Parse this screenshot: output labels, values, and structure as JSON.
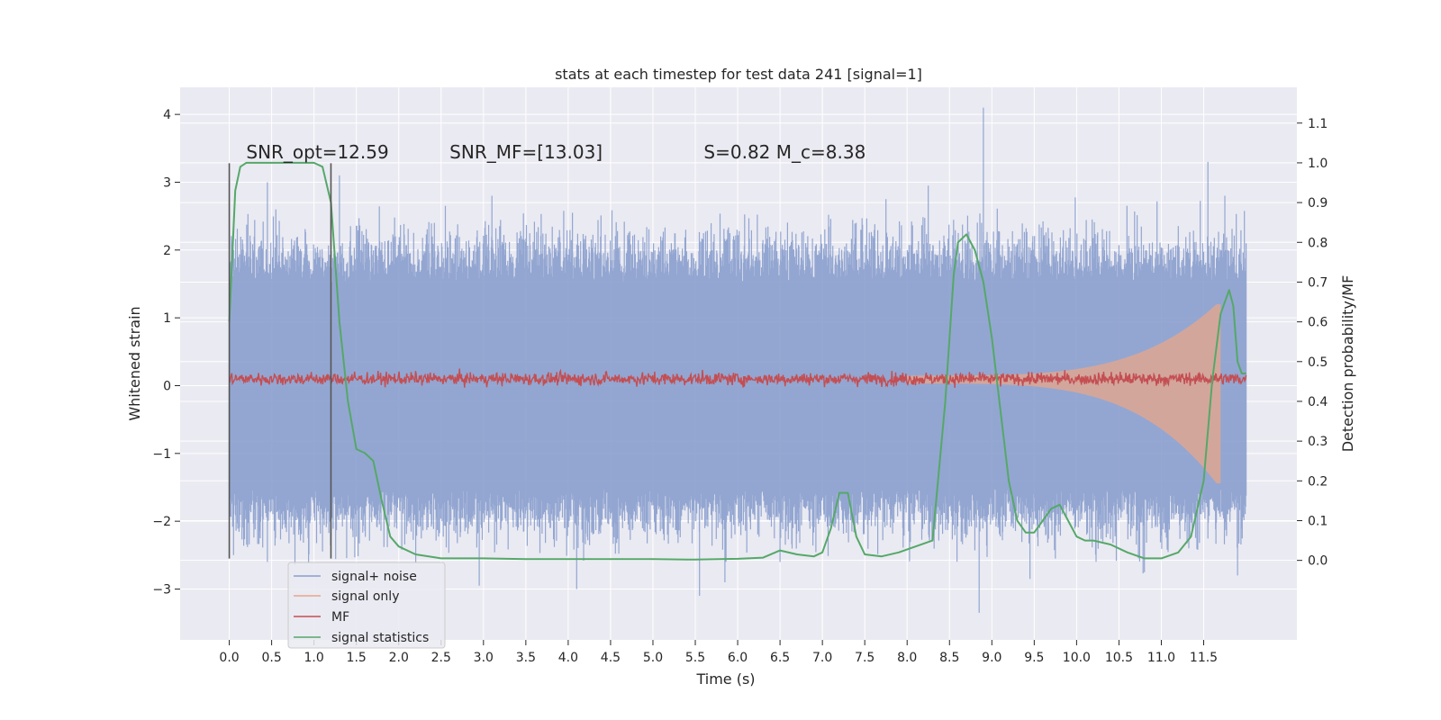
{
  "chart_data": {
    "type": "line",
    "title": "stats at each timestep for test data 241 [signal=1]",
    "xlabel": "Time (s)",
    "ylabel": "Whitened strain",
    "ylabel_right": "Detection probability/MF",
    "xlim": [
      -0.58,
      12.6
    ],
    "ylim": [
      -3.75,
      4.4
    ],
    "ylim_right": [
      -0.2,
      1.19
    ],
    "x_ticks": [
      "0.0",
      "0.5",
      "1.0",
      "1.5",
      "2.0",
      "2.5",
      "3.0",
      "3.5",
      "4.0",
      "4.5",
      "5.0",
      "5.5",
      "6.0",
      "6.5",
      "7.0",
      "7.5",
      "8.0",
      "8.5",
      "9.0",
      "9.5",
      "10.0",
      "10.5",
      "11.0",
      "11.5"
    ],
    "y_ticks": [
      "−3",
      "−2",
      "−1",
      "0",
      "1",
      "2",
      "3",
      "4"
    ],
    "y_ticks_right": [
      "0.0",
      "0.1",
      "0.2",
      "0.3",
      "0.4",
      "0.5",
      "0.6",
      "0.7",
      "0.8",
      "0.9",
      "1.0",
      "1.1"
    ],
    "grid": true,
    "legend_position": "lower-left",
    "annotations": [
      {
        "id": "snr-opt",
        "text": "SNR_opt=12.59",
        "x": 0.2,
        "y": 3.35
      },
      {
        "id": "snr-mf",
        "text": "SNR_MF=[13.03]",
        "x": 2.6,
        "y": 3.35
      },
      {
        "id": "s-mc",
        "text": "S=0.82   M_c=8.38",
        "x": 5.6,
        "y": 3.35
      }
    ],
    "vlines": [
      {
        "x": 0.0,
        "ymin": -2.55,
        "ymax": 3.28
      },
      {
        "x": 1.2,
        "ymin": -2.55,
        "ymax": 3.28
      }
    ],
    "series": [
      {
        "name": "signal+ noise",
        "color": "#8a9fcd",
        "x_range": [
          0.0,
          12.0
        ],
        "envelope_typical": 1.6,
        "spikes": [
          {
            "x": 0.05,
            "y": 2.0
          },
          {
            "x": 0.45,
            "y": 3.0
          },
          {
            "x": 0.55,
            "y": 2.6
          },
          {
            "x": 1.3,
            "y": 3.1
          },
          {
            "x": 2.55,
            "y": 2.65
          },
          {
            "x": 3.1,
            "y": 2.8
          },
          {
            "x": 4.05,
            "y": 2.55
          },
          {
            "x": 7.75,
            "y": 2.75
          },
          {
            "x": 8.25,
            "y": 2.95
          },
          {
            "x": 8.9,
            "y": 4.1
          },
          {
            "x": 11.55,
            "y": 3.3
          },
          {
            "x": 11.75,
            "y": 2.8
          },
          {
            "x": 12.0,
            "y": 2.1
          },
          {
            "x": 0.05,
            "y": -2.5
          },
          {
            "x": 0.45,
            "y": -2.6
          },
          {
            "x": 2.95,
            "y": -2.95
          },
          {
            "x": 4.1,
            "y": -3.0
          },
          {
            "x": 5.55,
            "y": -3.1
          },
          {
            "x": 5.85,
            "y": -2.9
          },
          {
            "x": 6.5,
            "y": -2.6
          },
          {
            "x": 8.85,
            "y": -3.35
          },
          {
            "x": 9.45,
            "y": -2.85
          },
          {
            "x": 10.8,
            "y": -2.75
          },
          {
            "x": 11.9,
            "y": -2.8
          }
        ]
      },
      {
        "name": "signal only",
        "color": "#e8a58a",
        "x_range": [
          8.0,
          11.7
        ],
        "chirp_amplitude_start": 0.05,
        "chirp_amplitude_peak": 1.1,
        "chirp_peak_time": 11.65
      },
      {
        "name": "MF",
        "color": "#c44e52",
        "x_range": [
          0.0,
          12.0
        ],
        "center": 0.1,
        "amplitude": 0.12
      },
      {
        "name": "signal statistics",
        "color": "#55a868",
        "axis": "right",
        "x": [
          0.0,
          0.07,
          0.13,
          0.2,
          0.3,
          0.5,
          0.8,
          1.0,
          1.1,
          1.2,
          1.3,
          1.4,
          1.5,
          1.6,
          1.7,
          1.8,
          1.9,
          2.0,
          2.2,
          2.5,
          3.0,
          3.5,
          4.0,
          4.5,
          5.0,
          5.5,
          6.0,
          6.3,
          6.5,
          6.7,
          6.9,
          7.0,
          7.1,
          7.2,
          7.3,
          7.4,
          7.5,
          7.7,
          7.9,
          8.1,
          8.3,
          8.45,
          8.55,
          8.6,
          8.7,
          8.8,
          8.9,
          9.0,
          9.1,
          9.2,
          9.3,
          9.4,
          9.5,
          9.6,
          9.7,
          9.8,
          9.9,
          10.0,
          10.1,
          10.2,
          10.4,
          10.6,
          10.8,
          11.0,
          11.2,
          11.35,
          11.5,
          11.6,
          11.7,
          11.8,
          11.85,
          11.9,
          11.95,
          12.0
        ],
        "y": [
          0.6,
          0.93,
          0.99,
          1.0,
          1.0,
          1.0,
          1.0,
          1.0,
          0.99,
          0.9,
          0.6,
          0.4,
          0.28,
          0.27,
          0.25,
          0.15,
          0.06,
          0.035,
          0.015,
          0.005,
          0.005,
          0.003,
          0.003,
          0.003,
          0.003,
          0.002,
          0.004,
          0.007,
          0.025,
          0.015,
          0.01,
          0.02,
          0.08,
          0.17,
          0.17,
          0.06,
          0.015,
          0.01,
          0.02,
          0.035,
          0.05,
          0.4,
          0.72,
          0.8,
          0.82,
          0.78,
          0.7,
          0.56,
          0.38,
          0.2,
          0.1,
          0.07,
          0.07,
          0.1,
          0.13,
          0.14,
          0.1,
          0.06,
          0.05,
          0.05,
          0.04,
          0.02,
          0.005,
          0.005,
          0.02,
          0.06,
          0.2,
          0.45,
          0.62,
          0.68,
          0.64,
          0.5,
          0.47,
          0.47
        ]
      }
    ]
  }
}
